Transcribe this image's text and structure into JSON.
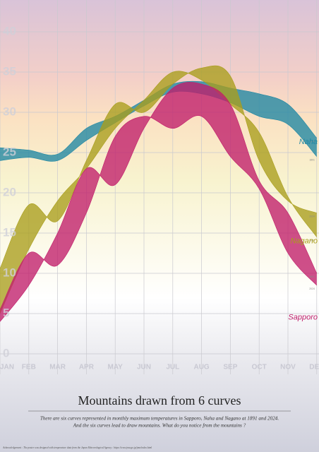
{
  "chart_data": {
    "type": "band",
    "title": "Mountains drawn from 6 curves",
    "subtitle": [
      "There are six curves represented in monthly maximum temperatures in Sapporo, Naha and Nagano at 1891 and 2024.",
      "And the six curves lead to draw mountains. What do you notice from the mountains ?"
    ],
    "acknowledgement": "Acknowledgement : The poster was designed with temperature data from the Japan Meteorological Agency : https://www.jma.go.jp/jma/index.html",
    "categories": [
      "JAN",
      "FEB",
      "MAR",
      "APR",
      "MAY",
      "JUN",
      "JUL",
      "AUG",
      "SEP",
      "OCT",
      "NOV",
      "DEC"
    ],
    "ylim": [
      0,
      40
    ],
    "yticks": [
      0,
      5,
      10,
      15,
      20,
      25,
      30,
      35,
      40
    ],
    "grid": true,
    "cities": [
      {
        "name": "Naha",
        "color": "#1f87a3",
        "curves": [
          {
            "year": "1891",
            "values": [
              24.0,
              24.4,
              24.0,
              26.5,
              28.7,
              30.8,
              32.5,
              32.3,
              31.2,
              29.5,
              28.5,
              24.5
            ]
          },
          {
            "year": "2024",
            "values": [
              25.6,
              25.3,
              24.8,
              28.0,
              29.5,
              31.5,
              33.5,
              33.8,
              33.0,
              32.3,
              31.0,
              26.8
            ]
          }
        ]
      },
      {
        "name": "Nagano",
        "color": "#a99e1c",
        "curves": [
          {
            "year": "1891",
            "values": [
              5.0,
              13.0,
              19.0,
              23.0,
              28.0,
              31.5,
              35.0,
              34.0,
              31.0,
              27.5,
              19.5,
              14.5
            ]
          },
          {
            "year": "2024",
            "values": [
              10.6,
              18.5,
              16.5,
              24.0,
              31.0,
              30.0,
              33.5,
              35.5,
              34.5,
              24.0,
              19.0,
              17.5
            ]
          }
        ]
      },
      {
        "name": "Sapporo",
        "color": "#c01e6a",
        "curves": [
          {
            "year": "1891",
            "values": [
              4.0,
              8.5,
              15.0,
              23.0,
              21.0,
              28.0,
              33.0,
              33.5,
              31.0,
              21.5,
              17.5,
              10.0
            ]
          },
          {
            "year": "2024",
            "values": [
              5.5,
              12.5,
              11.0,
              17.5,
              27.0,
              29.5,
              28.0,
              29.5,
              24.5,
              20.5,
              12.5,
              8.5
            ]
          }
        ]
      }
    ]
  }
}
